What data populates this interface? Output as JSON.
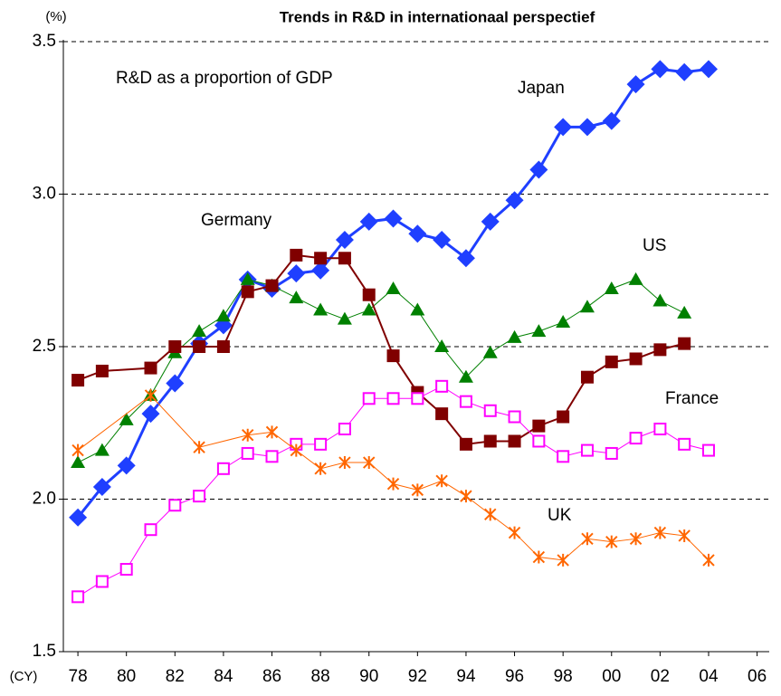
{
  "chart_data": {
    "type": "line",
    "title": "Trends in R&D in internationaal perspectief",
    "annotation": "R&D as a proportion of GDP",
    "y_unit": "(%)",
    "x_unit": "(CY)",
    "xlim": [
      1977.4,
      2006.5
    ],
    "xticks": [
      {
        "value": 1978,
        "label": "78"
      },
      {
        "value": 1980,
        "label": "80"
      },
      {
        "value": 1982,
        "label": "82"
      },
      {
        "value": 1984,
        "label": "84"
      },
      {
        "value": 1986,
        "label": "86"
      },
      {
        "value": 1988,
        "label": "88"
      },
      {
        "value": 1990,
        "label": "90"
      },
      {
        "value": 1992,
        "label": "92"
      },
      {
        "value": 1994,
        "label": "94"
      },
      {
        "value": 1996,
        "label": "96"
      },
      {
        "value": 1998,
        "label": "98"
      },
      {
        "value": 2000,
        "label": "00"
      },
      {
        "value": 2002,
        "label": "02"
      },
      {
        "value": 2004,
        "label": "04"
      },
      {
        "value": 2006,
        "label": "06"
      }
    ],
    "ylim": [
      1.5,
      3.5
    ],
    "yticks": [
      {
        "value": 1.5,
        "label": "1.5"
      },
      {
        "value": 2.0,
        "label": "2.0"
      },
      {
        "value": 2.5,
        "label": "2.5"
      },
      {
        "value": 3.0,
        "label": "3.0"
      },
      {
        "value": 3.5,
        "label": "3.5"
      }
    ],
    "grid": true,
    "series": [
      {
        "name": "Japan",
        "color": "#1f3fff",
        "marker": "diamond",
        "x": [
          1978,
          1979,
          1980,
          1981,
          1982,
          1983,
          1984,
          1985,
          1986,
          1987,
          1988,
          1989,
          1990,
          1991,
          1992,
          1993,
          1994,
          1995,
          1996,
          1997,
          1998,
          1999,
          2000,
          2001,
          2002,
          2003,
          2004
        ],
        "values": [
          1.94,
          2.04,
          2.11,
          2.28,
          2.38,
          2.51,
          2.57,
          2.72,
          2.69,
          2.74,
          2.75,
          2.85,
          2.91,
          2.92,
          2.87,
          2.85,
          2.79,
          2.91,
          2.98,
          3.08,
          3.22,
          3.22,
          3.24,
          3.36,
          3.41,
          3.4,
          3.41
        ]
      },
      {
        "name": "US",
        "color": "#008000",
        "marker": "triangle",
        "x": [
          1978,
          1979,
          1980,
          1981,
          1982,
          1983,
          1984,
          1985,
          1986,
          1987,
          1988,
          1989,
          1990,
          1991,
          1992,
          1993,
          1994,
          1995,
          1996,
          1997,
          1998,
          1999,
          2000,
          2001,
          2002,
          2003
        ],
        "values": [
          2.12,
          2.16,
          2.26,
          2.34,
          2.48,
          2.55,
          2.6,
          2.72,
          2.7,
          2.66,
          2.62,
          2.59,
          2.62,
          2.69,
          2.62,
          2.5,
          2.4,
          2.48,
          2.53,
          2.55,
          2.58,
          2.63,
          2.69,
          2.72,
          2.65,
          2.61
        ]
      },
      {
        "name": "Germany",
        "color": "#800000",
        "marker": "square",
        "x": [
          1978,
          1979,
          1981,
          1982,
          1983,
          1984,
          1985,
          1986,
          1987,
          1988,
          1989,
          1990,
          1991,
          1992,
          1993,
          1994,
          1995,
          1996,
          1997,
          1998,
          1999,
          2000,
          2001,
          2002,
          2003
        ],
        "values": [
          2.39,
          2.42,
          2.43,
          2.5,
          2.5,
          2.5,
          2.68,
          2.7,
          2.8,
          2.79,
          2.79,
          2.67,
          2.47,
          2.35,
          2.28,
          2.18,
          2.19,
          2.19,
          2.24,
          2.27,
          2.4,
          2.45,
          2.46,
          2.49,
          2.51
        ]
      },
      {
        "name": "France",
        "color": "#ff00ff",
        "marker": "open-square",
        "x": [
          1978,
          1979,
          1980,
          1981,
          1982,
          1983,
          1984,
          1985,
          1986,
          1987,
          1988,
          1989,
          1990,
          1991,
          1992,
          1993,
          1994,
          1995,
          1996,
          1997,
          1998,
          1999,
          2000,
          2001,
          2002,
          2003,
          2004
        ],
        "values": [
          1.68,
          1.73,
          1.77,
          1.9,
          1.98,
          2.01,
          2.1,
          2.15,
          2.14,
          2.18,
          2.18,
          2.23,
          2.33,
          2.33,
          2.33,
          2.37,
          2.32,
          2.29,
          2.27,
          2.19,
          2.14,
          2.16,
          2.15,
          2.2,
          2.23,
          2.18,
          2.16
        ]
      },
      {
        "name": "UK",
        "color": "#ff6600",
        "marker": "star",
        "x": [
          1978,
          1981,
          1983,
          1985,
          1986,
          1987,
          1988,
          1989,
          1990,
          1991,
          1992,
          1993,
          1994,
          1995,
          1996,
          1997,
          1998,
          1999,
          2000,
          2001,
          2002,
          2003,
          2004
        ],
        "values": [
          2.16,
          2.34,
          2.17,
          2.21,
          2.22,
          2.16,
          2.1,
          2.12,
          2.12,
          2.05,
          2.03,
          2.06,
          2.01,
          1.95,
          1.89,
          1.81,
          1.8,
          1.87,
          1.86,
          1.87,
          1.89,
          1.88,
          1.8
        ]
      }
    ]
  }
}
